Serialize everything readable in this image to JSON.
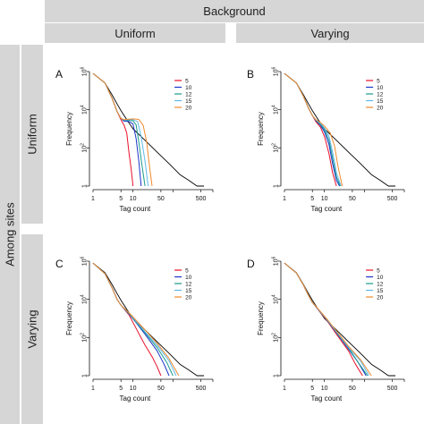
{
  "headers": {
    "background": "Background",
    "columns": [
      "Uniform",
      "Varying"
    ],
    "among_sites": "Among sites",
    "rows": [
      "Uniform",
      "Varying"
    ]
  },
  "colors": {
    "header_bg": "#d6d6d6",
    "5": "#e8102a",
    "10": "#1a33c8",
    "12": "#1a9a8a",
    "15": "#5fb8e8",
    "20": "#f08a2c",
    "total": "#000000"
  },
  "chart_data": [
    {
      "panel": "A",
      "type": "line",
      "xscale": "log",
      "yscale": "log",
      "xlabel": "Tag count",
      "ylabel": "Frequency",
      "xlim": [
        1,
        1000
      ],
      "ylim": [
        1,
        1000000
      ],
      "xticks": [
        "1",
        "5",
        "10",
        "50",
        "500"
      ],
      "yticks": [
        "1",
        "10^2",
        "10^4",
        "10^6"
      ],
      "legend": [
        "5",
        "10",
        "12",
        "15",
        "20"
      ],
      "series": [
        {
          "name": "5",
          "x": [
            1,
            2,
            3,
            4,
            5,
            6,
            7,
            8,
            9,
            10
          ],
          "y": [
            800000,
            250000,
            40000,
            8000,
            3000,
            1500,
            600,
            50,
            8,
            1
          ]
        },
        {
          "name": "10",
          "x": [
            1,
            2,
            3,
            4,
            5,
            6,
            8,
            10,
            12,
            14,
            16
          ],
          "y": [
            800000,
            250000,
            40000,
            8000,
            3500,
            2500,
            2400,
            1800,
            300,
            20,
            1
          ]
        },
        {
          "name": "12",
          "x": [
            1,
            2,
            3,
            4,
            5,
            6,
            8,
            10,
            12,
            14,
            17,
            20
          ],
          "y": [
            800000,
            250000,
            40000,
            8000,
            3500,
            2800,
            2800,
            2600,
            1600,
            200,
            10,
            1
          ]
        },
        {
          "name": "15",
          "x": [
            1,
            2,
            3,
            4,
            5,
            6,
            8,
            10,
            13,
            16,
            20,
            24
          ],
          "y": [
            800000,
            250000,
            40000,
            8000,
            3500,
            2900,
            3000,
            3000,
            2400,
            400,
            20,
            1
          ]
        },
        {
          "name": "20",
          "x": [
            1,
            2,
            3,
            4,
            5,
            6,
            8,
            10,
            14,
            18,
            22,
            26,
            30
          ],
          "y": [
            800000,
            250000,
            40000,
            8000,
            3500,
            3000,
            3200,
            3300,
            3100,
            1500,
            200,
            10,
            1
          ]
        },
        {
          "name": "total",
          "x": [
            1,
            2,
            3,
            4,
            5,
            7,
            10,
            20,
            40,
            80,
            150,
            250,
            400,
            600
          ],
          "y": [
            800000,
            250000,
            60000,
            20000,
            9000,
            3000,
            1000,
            250,
            60,
            15,
            4,
            2,
            1,
            1
          ]
        }
      ]
    },
    {
      "panel": "B",
      "type": "line",
      "xscale": "log",
      "yscale": "log",
      "xlabel": "Tag count",
      "ylabel": "Frequency",
      "xlim": [
        1,
        1000
      ],
      "ylim": [
        1,
        1000000
      ],
      "xticks": [
        "1",
        "5",
        "10",
        "50",
        "500"
      ],
      "yticks": [
        "1",
        "10^2",
        "10^4",
        "10^6"
      ],
      "legend": [
        "5",
        "10",
        "12",
        "15",
        "20"
      ],
      "series": [
        {
          "name": "5",
          "x": [
            1,
            2,
            3,
            4,
            5,
            6,
            8,
            10,
            13,
            16,
            20
          ],
          "y": [
            800000,
            250000,
            50000,
            12000,
            5000,
            2500,
            1200,
            400,
            50,
            5,
            1
          ]
        },
        {
          "name": "10",
          "x": [
            1,
            2,
            3,
            4,
            5,
            6,
            8,
            10,
            13,
            16,
            20,
            24
          ],
          "y": [
            800000,
            250000,
            50000,
            12000,
            5000,
            2800,
            1500,
            700,
            150,
            15,
            2,
            1
          ]
        },
        {
          "name": "12",
          "x": [
            1,
            2,
            3,
            4,
            5,
            6,
            8,
            10,
            13,
            16,
            20,
            25
          ],
          "y": [
            800000,
            250000,
            50000,
            12000,
            5000,
            2900,
            1700,
            900,
            250,
            30,
            3,
            1
          ]
        },
        {
          "name": "15",
          "x": [
            1,
            2,
            3,
            4,
            5,
            6,
            8,
            10,
            13,
            16,
            20,
            26
          ],
          "y": [
            800000,
            250000,
            50000,
            12000,
            5000,
            3000,
            1900,
            1100,
            400,
            60,
            5,
            1
          ]
        },
        {
          "name": "20",
          "x": [
            1,
            2,
            3,
            4,
            5,
            6,
            8,
            10,
            14,
            18,
            22,
            28
          ],
          "y": [
            800000,
            250000,
            50000,
            12000,
            5000,
            3100,
            2100,
            1400,
            600,
            120,
            10,
            1
          ]
        },
        {
          "name": "total",
          "x": [
            1,
            2,
            3,
            4,
            5,
            7,
            10,
            20,
            40,
            80,
            150,
            250,
            400,
            600
          ],
          "y": [
            800000,
            250000,
            60000,
            20000,
            9000,
            3000,
            1000,
            250,
            60,
            15,
            4,
            2,
            1,
            1
          ]
        }
      ]
    },
    {
      "panel": "C",
      "type": "line",
      "xscale": "log",
      "yscale": "log",
      "xlabel": "Tag count",
      "ylabel": "Frequency",
      "xlim": [
        1,
        1000
      ],
      "ylim": [
        1,
        1000000
      ],
      "xticks": [
        "1",
        "5",
        "10",
        "50",
        "500"
      ],
      "yticks": [
        "1",
        "10^2",
        "10^4",
        "10^6"
      ],
      "legend": [
        "5",
        "10",
        "12",
        "15",
        "20"
      ],
      "series": [
        {
          "name": "5",
          "x": [
            1,
            2,
            3,
            4,
            5,
            8,
            12,
            20,
            30,
            40,
            50
          ],
          "y": [
            800000,
            220000,
            40000,
            10000,
            5000,
            1500,
            300,
            40,
            10,
            3,
            1
          ]
        },
        {
          "name": "10",
          "x": [
            1,
            2,
            3,
            4,
            5,
            8,
            12,
            20,
            40,
            60,
            80
          ],
          "y": [
            800000,
            220000,
            40000,
            10000,
            5000,
            1700,
            600,
            150,
            20,
            4,
            1
          ]
        },
        {
          "name": "12",
          "x": [
            1,
            2,
            3,
            4,
            5,
            8,
            12,
            20,
            40,
            70,
            100
          ],
          "y": [
            800000,
            220000,
            40000,
            10000,
            5000,
            1800,
            650,
            180,
            30,
            5,
            1
          ]
        },
        {
          "name": "15",
          "x": [
            1,
            2,
            3,
            4,
            5,
            8,
            12,
            20,
            40,
            80,
            120
          ],
          "y": [
            800000,
            220000,
            40000,
            10000,
            5000,
            1900,
            700,
            200,
            40,
            6,
            1
          ]
        },
        {
          "name": "20",
          "x": [
            1,
            2,
            3,
            4,
            5,
            8,
            12,
            20,
            40,
            80,
            140
          ],
          "y": [
            800000,
            220000,
            40000,
            10000,
            5000,
            2000,
            800,
            250,
            50,
            8,
            1
          ]
        },
        {
          "name": "total",
          "x": [
            1,
            2,
            3,
            4,
            5,
            7,
            10,
            20,
            40,
            80,
            150,
            250,
            400,
            600
          ],
          "y": [
            800000,
            250000,
            60000,
            20000,
            9000,
            3000,
            1000,
            250,
            60,
            15,
            4,
            2,
            1,
            1
          ]
        }
      ]
    },
    {
      "panel": "D",
      "type": "line",
      "xscale": "log",
      "yscale": "log",
      "xlabel": "Tag count",
      "ylabel": "Frequency",
      "xlim": [
        1,
        1000
      ],
      "ylim": [
        1,
        1000000
      ],
      "xticks": [
        "1",
        "5",
        "10",
        "50",
        "500"
      ],
      "yticks": [
        "1",
        "10^2",
        "10^4",
        "10^6"
      ],
      "legend": [
        "5",
        "10",
        "12",
        "15",
        "20"
      ],
      "series": [
        {
          "name": "5",
          "x": [
            1,
            2,
            3,
            4,
            5,
            8,
            12,
            20,
            40,
            60,
            90
          ],
          "y": [
            800000,
            240000,
            55000,
            16000,
            7000,
            2000,
            700,
            150,
            20,
            4,
            1
          ]
        },
        {
          "name": "10",
          "x": [
            1,
            2,
            3,
            4,
            5,
            8,
            12,
            20,
            40,
            70,
            110
          ],
          "y": [
            800000,
            240000,
            55000,
            16000,
            7000,
            2100,
            750,
            180,
            25,
            5,
            1
          ]
        },
        {
          "name": "12",
          "x": [
            1,
            2,
            3,
            4,
            5,
            8,
            12,
            20,
            40,
            70,
            120
          ],
          "y": [
            800000,
            240000,
            55000,
            16000,
            7000,
            2150,
            780,
            190,
            28,
            5,
            1
          ]
        },
        {
          "name": "15",
          "x": [
            1,
            2,
            3,
            4,
            5,
            8,
            12,
            20,
            40,
            80,
            130
          ],
          "y": [
            800000,
            240000,
            55000,
            16000,
            7000,
            2200,
            800,
            200,
            30,
            6,
            1
          ]
        },
        {
          "name": "20",
          "x": [
            1,
            2,
            3,
            4,
            5,
            8,
            12,
            20,
            40,
            80,
            150
          ],
          "y": [
            800000,
            240000,
            55000,
            16000,
            7000,
            2300,
            850,
            220,
            35,
            7,
            1
          ]
        },
        {
          "name": "total",
          "x": [
            1,
            2,
            3,
            4,
            5,
            7,
            10,
            20,
            40,
            80,
            150,
            250,
            400,
            600
          ],
          "y": [
            800000,
            250000,
            60000,
            20000,
            9000,
            3000,
            1000,
            250,
            60,
            15,
            4,
            2,
            1,
            1
          ]
        }
      ]
    }
  ]
}
